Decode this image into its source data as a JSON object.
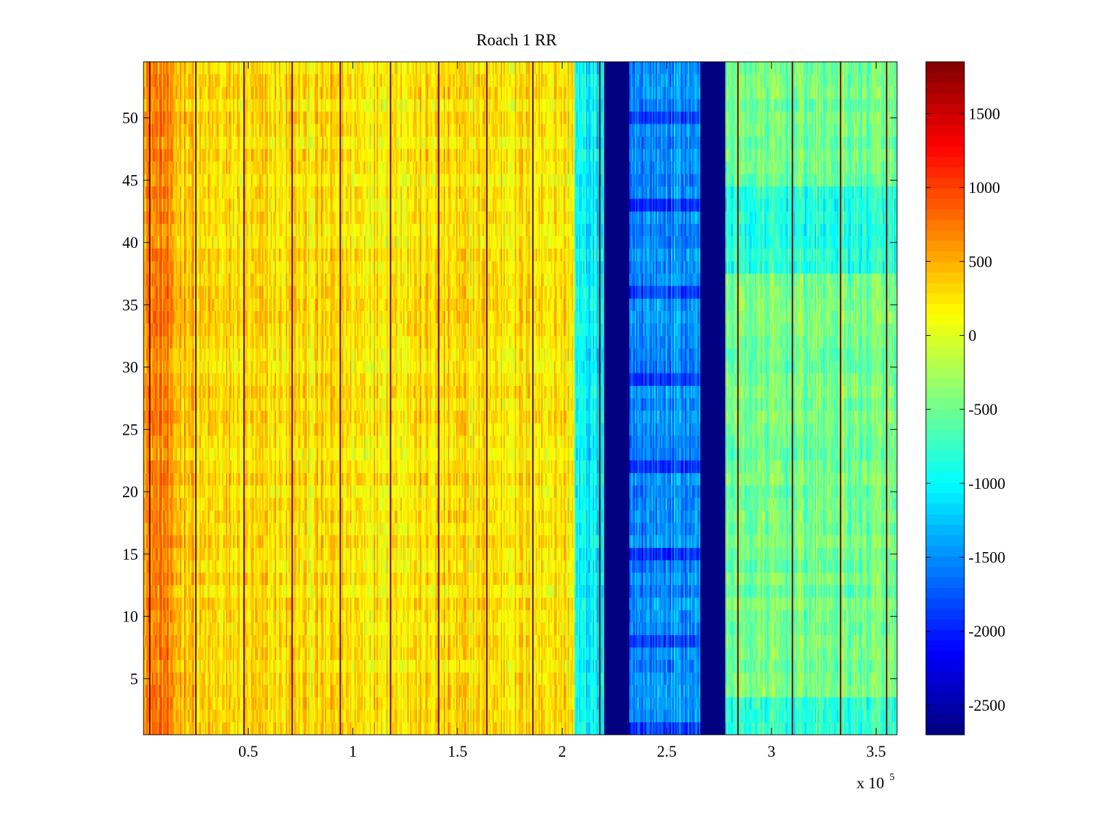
{
  "chart_data": {
    "type": "heatmap",
    "title": "Roach 1 RR",
    "colormap": "jet",
    "xlim": [
      0,
      360000
    ],
    "ylim": [
      0.5,
      54.5
    ],
    "x_scale_label": "x 10",
    "x_scale_exponent": "5",
    "x_ticks": [
      {
        "value": 50000,
        "label": "0.5"
      },
      {
        "value": 100000,
        "label": "1"
      },
      {
        "value": 150000,
        "label": "1.5"
      },
      {
        "value": 200000,
        "label": "2"
      },
      {
        "value": 250000,
        "label": "2.5"
      },
      {
        "value": 300000,
        "label": "3"
      },
      {
        "value": 350000,
        "label": "3.5"
      }
    ],
    "y_ticks": [
      {
        "value": 5,
        "label": "5"
      },
      {
        "value": 10,
        "label": "10"
      },
      {
        "value": 15,
        "label": "15"
      },
      {
        "value": 20,
        "label": "20"
      },
      {
        "value": 25,
        "label": "25"
      },
      {
        "value": 30,
        "label": "30"
      },
      {
        "value": 35,
        "label": "35"
      },
      {
        "value": 40,
        "label": "40"
      },
      {
        "value": 45,
        "label": "45"
      },
      {
        "value": 50,
        "label": "50"
      }
    ],
    "colorbar": {
      "clim": [
        -2700,
        1850
      ],
      "ticks": [
        {
          "value": 1500,
          "label": "1500"
        },
        {
          "value": 1000,
          "label": "1000"
        },
        {
          "value": 500,
          "label": "500"
        },
        {
          "value": 0,
          "label": "0"
        },
        {
          "value": -500,
          "label": "-500"
        },
        {
          "value": -1000,
          "label": "-1000"
        },
        {
          "value": -1500,
          "label": "-1500"
        },
        {
          "value": -2000,
          "label": "-2000"
        },
        {
          "value": -2500,
          "label": "-2500"
        }
      ]
    },
    "regions": [
      {
        "x0": 0,
        "x1": 25000,
        "mean": 450
      },
      {
        "x0": 25000,
        "x1": 206000,
        "mean": 250
      },
      {
        "x0": 206000,
        "x1": 220000,
        "mean": -1050
      },
      {
        "x0": 220000,
        "x1": 232000,
        "mean": -2700
      },
      {
        "x0": 232000,
        "x1": 266000,
        "mean": -1500
      },
      {
        "x0": 266000,
        "x1": 278000,
        "mean": -2700
      },
      {
        "x0": 278000,
        "x1": 360000,
        "mean": -500
      }
    ],
    "dark_lines_x": [
      3000,
      25000,
      48000,
      71000,
      94000,
      118000,
      141000,
      164000,
      186000,
      218000,
      284000,
      310000,
      333000,
      355000
    ],
    "seed": 12345
  }
}
